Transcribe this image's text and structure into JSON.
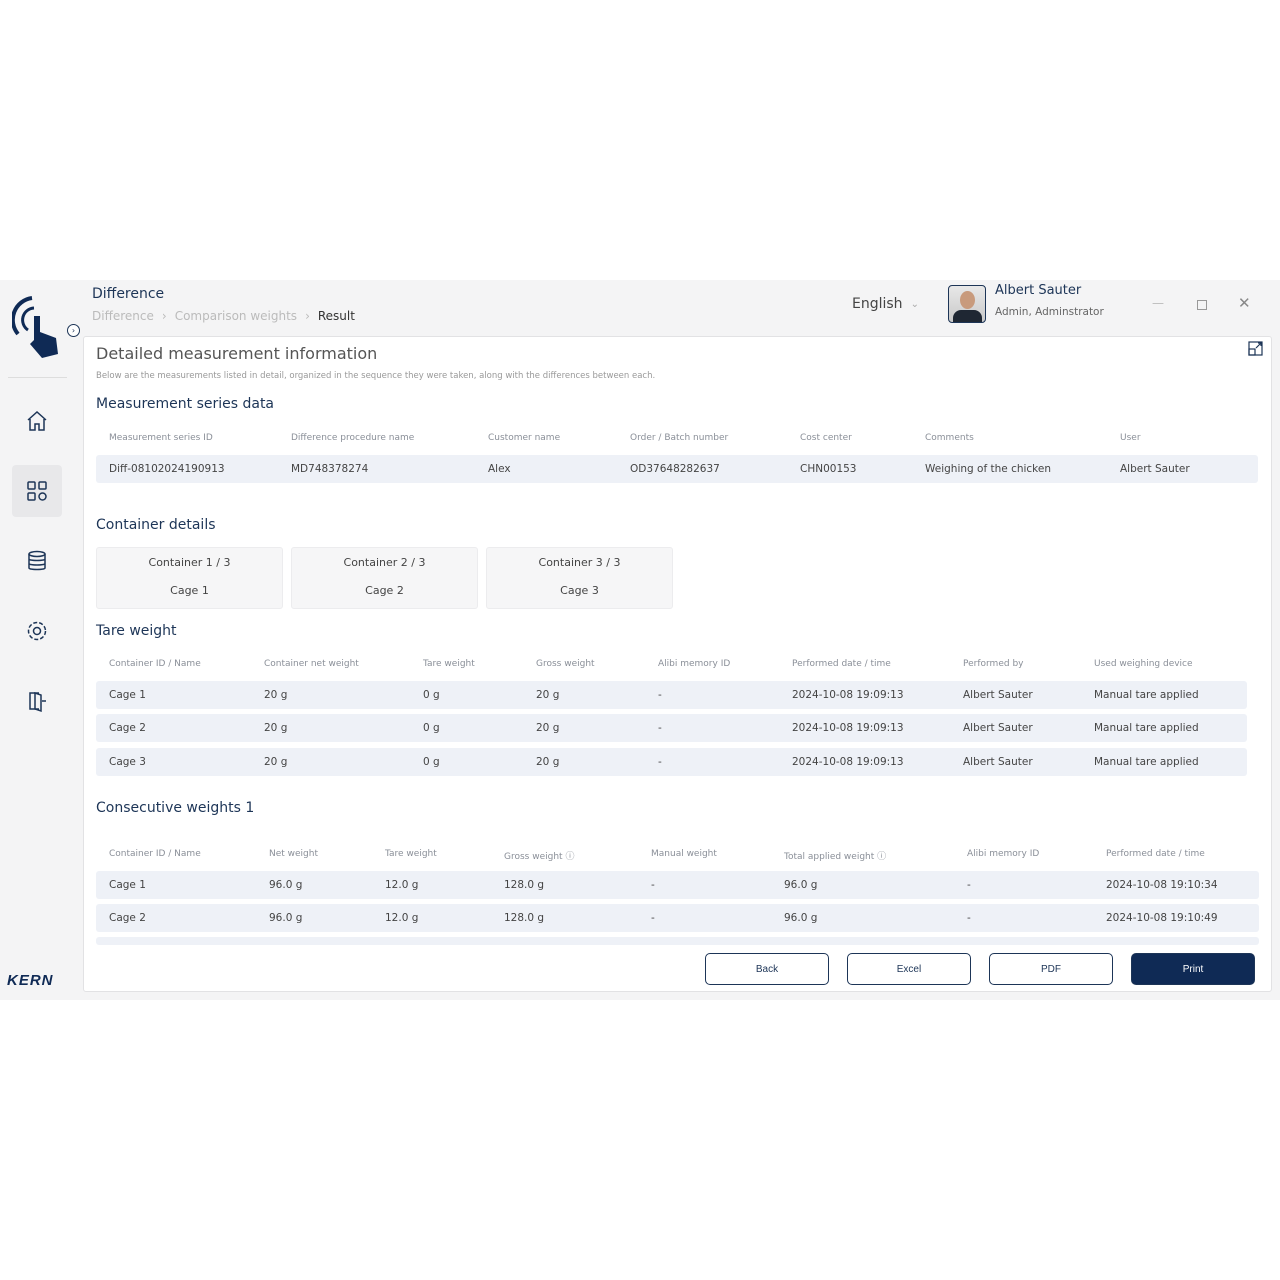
{
  "header": {
    "title": "Difference",
    "breadcrumb": [
      "Difference",
      "Comparison weights",
      "Result"
    ],
    "language": "English",
    "user_name": "Albert Sauter",
    "user_role": "Admin, Adminstrator"
  },
  "sidebar": {
    "items": [
      "home-icon",
      "dashboard-icon",
      "database-icon",
      "settings-icon",
      "logout-icon"
    ],
    "active": "dashboard-icon",
    "brand": "KERN"
  },
  "page": {
    "title": "Detailed measurement information",
    "subtitle": "Below are the measurements listed in detail, organized in the sequence they were taken, along with the differences between each."
  },
  "series": {
    "heading": "Measurement series data",
    "columns": [
      "Measurement series ID",
      "Difference procedure name",
      "Customer name",
      "Order / Batch number",
      "Cost center",
      "Comments",
      "User"
    ],
    "row": [
      "Diff-08102024190913",
      "MD748378274",
      "Alex",
      "OD37648282637",
      "CHN00153",
      "Weighing of the chicken",
      "Albert Sauter"
    ]
  },
  "containers": {
    "heading": "Container details",
    "items": [
      {
        "label": "Container 1 / 3",
        "name": "Cage 1"
      },
      {
        "label": "Container 2 / 3",
        "name": "Cage 2"
      },
      {
        "label": "Container 3 / 3",
        "name": "Cage 3"
      }
    ]
  },
  "tare": {
    "heading": "Tare weight",
    "columns": [
      "Container ID / Name",
      "Container net weight",
      "Tare weight",
      "Gross weight",
      "Alibi memory ID",
      "Performed date / time",
      "Performed by",
      "Used weighing device"
    ],
    "rows": [
      [
        "Cage 1",
        "20 g",
        "0 g",
        "20 g",
        "-",
        "2024-10-08 19:09:13",
        "Albert Sauter",
        "Manual tare applied"
      ],
      [
        "Cage 2",
        "20 g",
        "0 g",
        "20 g",
        "-",
        "2024-10-08 19:09:13",
        "Albert Sauter",
        "Manual tare applied"
      ],
      [
        "Cage 3",
        "20 g",
        "0 g",
        "20 g",
        "-",
        "2024-10-08 19:09:13",
        "Albert Sauter",
        "Manual tare applied"
      ]
    ]
  },
  "consecutive": {
    "heading": "Consecutive weights 1",
    "columns": [
      "Container ID / Name",
      "Net weight",
      "Tare weight",
      "Gross weight",
      "Manual weight",
      "Total applied weight",
      "Alibi memory ID",
      "Performed date / time"
    ],
    "rows": [
      [
        "Cage 1",
        "96.0 g",
        "12.0 g",
        "128.0 g",
        "-",
        "96.0 g",
        "-",
        "2024-10-08 19:10:34"
      ],
      [
        "Cage 2",
        "96.0 g",
        "12.0 g",
        "128.0 g",
        "-",
        "96.0 g",
        "-",
        "2024-10-08 19:10:49"
      ]
    ]
  },
  "buttons": {
    "back": "Back",
    "excel": "Excel",
    "pdf": "PDF",
    "print": "Print"
  },
  "colors": {
    "accent": "#1d3557",
    "primary_button": "#0f2a55",
    "row_bg": "#eef1f7"
  }
}
